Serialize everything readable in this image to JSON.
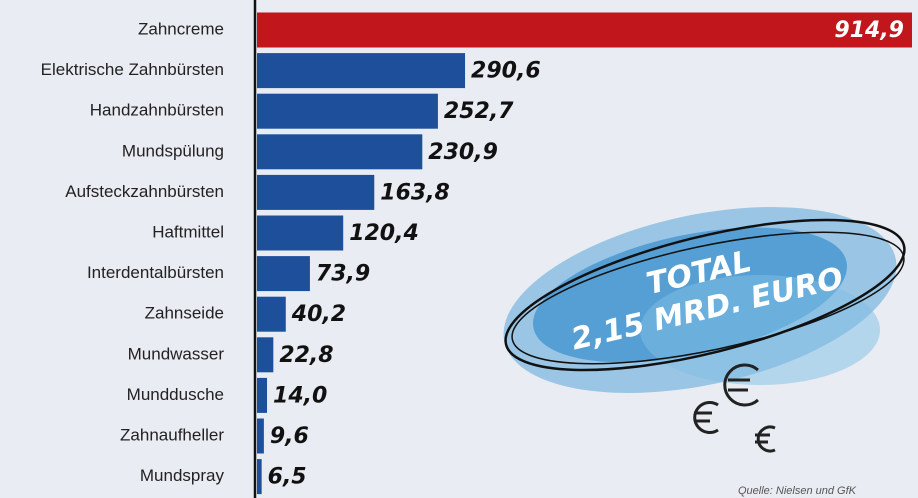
{
  "chart_data": {
    "type": "hbar",
    "categories": [
      "Zahncreme",
      "Elektrische Zahnbürsten",
      "Handzahnbürsten",
      "Mundspülung",
      "Aufsteckzahnbürsten",
      "Haftmittel",
      "Interdentalbürsten",
      "Zahnseide",
      "Mundwasser",
      "Munddusche",
      "Zahnaufheller",
      "Mundspray"
    ],
    "values": [
      914.9,
      290.6,
      252.7,
      230.9,
      163.8,
      120.4,
      73.9,
      40.2,
      22.8,
      14.0,
      9.6,
      6.5
    ],
    "value_labels": [
      "914,9",
      "290,6",
      "252,7",
      "230,9",
      "163,8",
      "120,4",
      "73,9",
      "40,2",
      "22,8",
      "14,0",
      "9,6",
      "6,5"
    ],
    "colors": [
      "#c1161c",
      "#1d4f9b",
      "#1d4f9b",
      "#1d4f9b",
      "#1d4f9b",
      "#1d4f9b",
      "#1d4f9b",
      "#1d4f9b",
      "#1d4f9b",
      "#1d4f9b",
      "#1d4f9b",
      "#1d4f9b"
    ],
    "annotation": [
      "TOTAL",
      "2,15 MRD. EURO"
    ],
    "source": "Quelle: Nielsen und GfK"
  }
}
